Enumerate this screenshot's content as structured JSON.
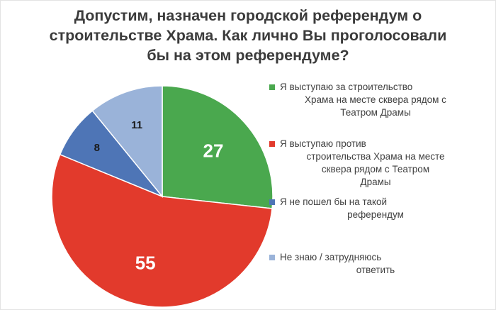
{
  "chart_data": {
    "type": "pie",
    "title_lines": [
      "Допустим, назначен городской референдум о",
      "строительстве Храма. Как лично Вы проголосовали",
      "бы на этом референдуме?"
    ],
    "slices": [
      {
        "label": "Я выступаю за строительство Храма на месте сквера рядом с Театром Драмы",
        "value": 27,
        "display": "27",
        "color": "#4aa84e"
      },
      {
        "label": "Я выступаю против строительства Храма на месте сквера рядом с Театром Драмы",
        "value": 55,
        "display": "55",
        "color": "#e23a2c"
      },
      {
        "label": "Я не пошел бы на такой референдум",
        "value": 8,
        "display": "8",
        "color": "#4e75b6"
      },
      {
        "label": "Не знаю / затрудняюсь ответить",
        "value": 11,
        "display": "11",
        "color": "#9ab3d9"
      }
    ],
    "legend": {
      "placement": "right",
      "items": [
        {
          "lines": [
            "Я выступаю за строительство",
            "Храма на месте сквера рядом с",
            "Театром Драмы"
          ],
          "color": "#4aa84e"
        },
        {
          "lines": [
            "Я выступаю против",
            "строительства Храма на месте",
            "сквера рядом с Театром",
            "Драмы"
          ],
          "color": "#e23a2c"
        },
        {
          "lines": [
            "Я не пошел бы на такой",
            "референдум"
          ],
          "color": "#4e75b6"
        },
        {
          "lines": [
            "Не знаю / затрудняюсь",
            "ответить"
          ],
          "color": "#9ab3d9"
        }
      ]
    }
  }
}
